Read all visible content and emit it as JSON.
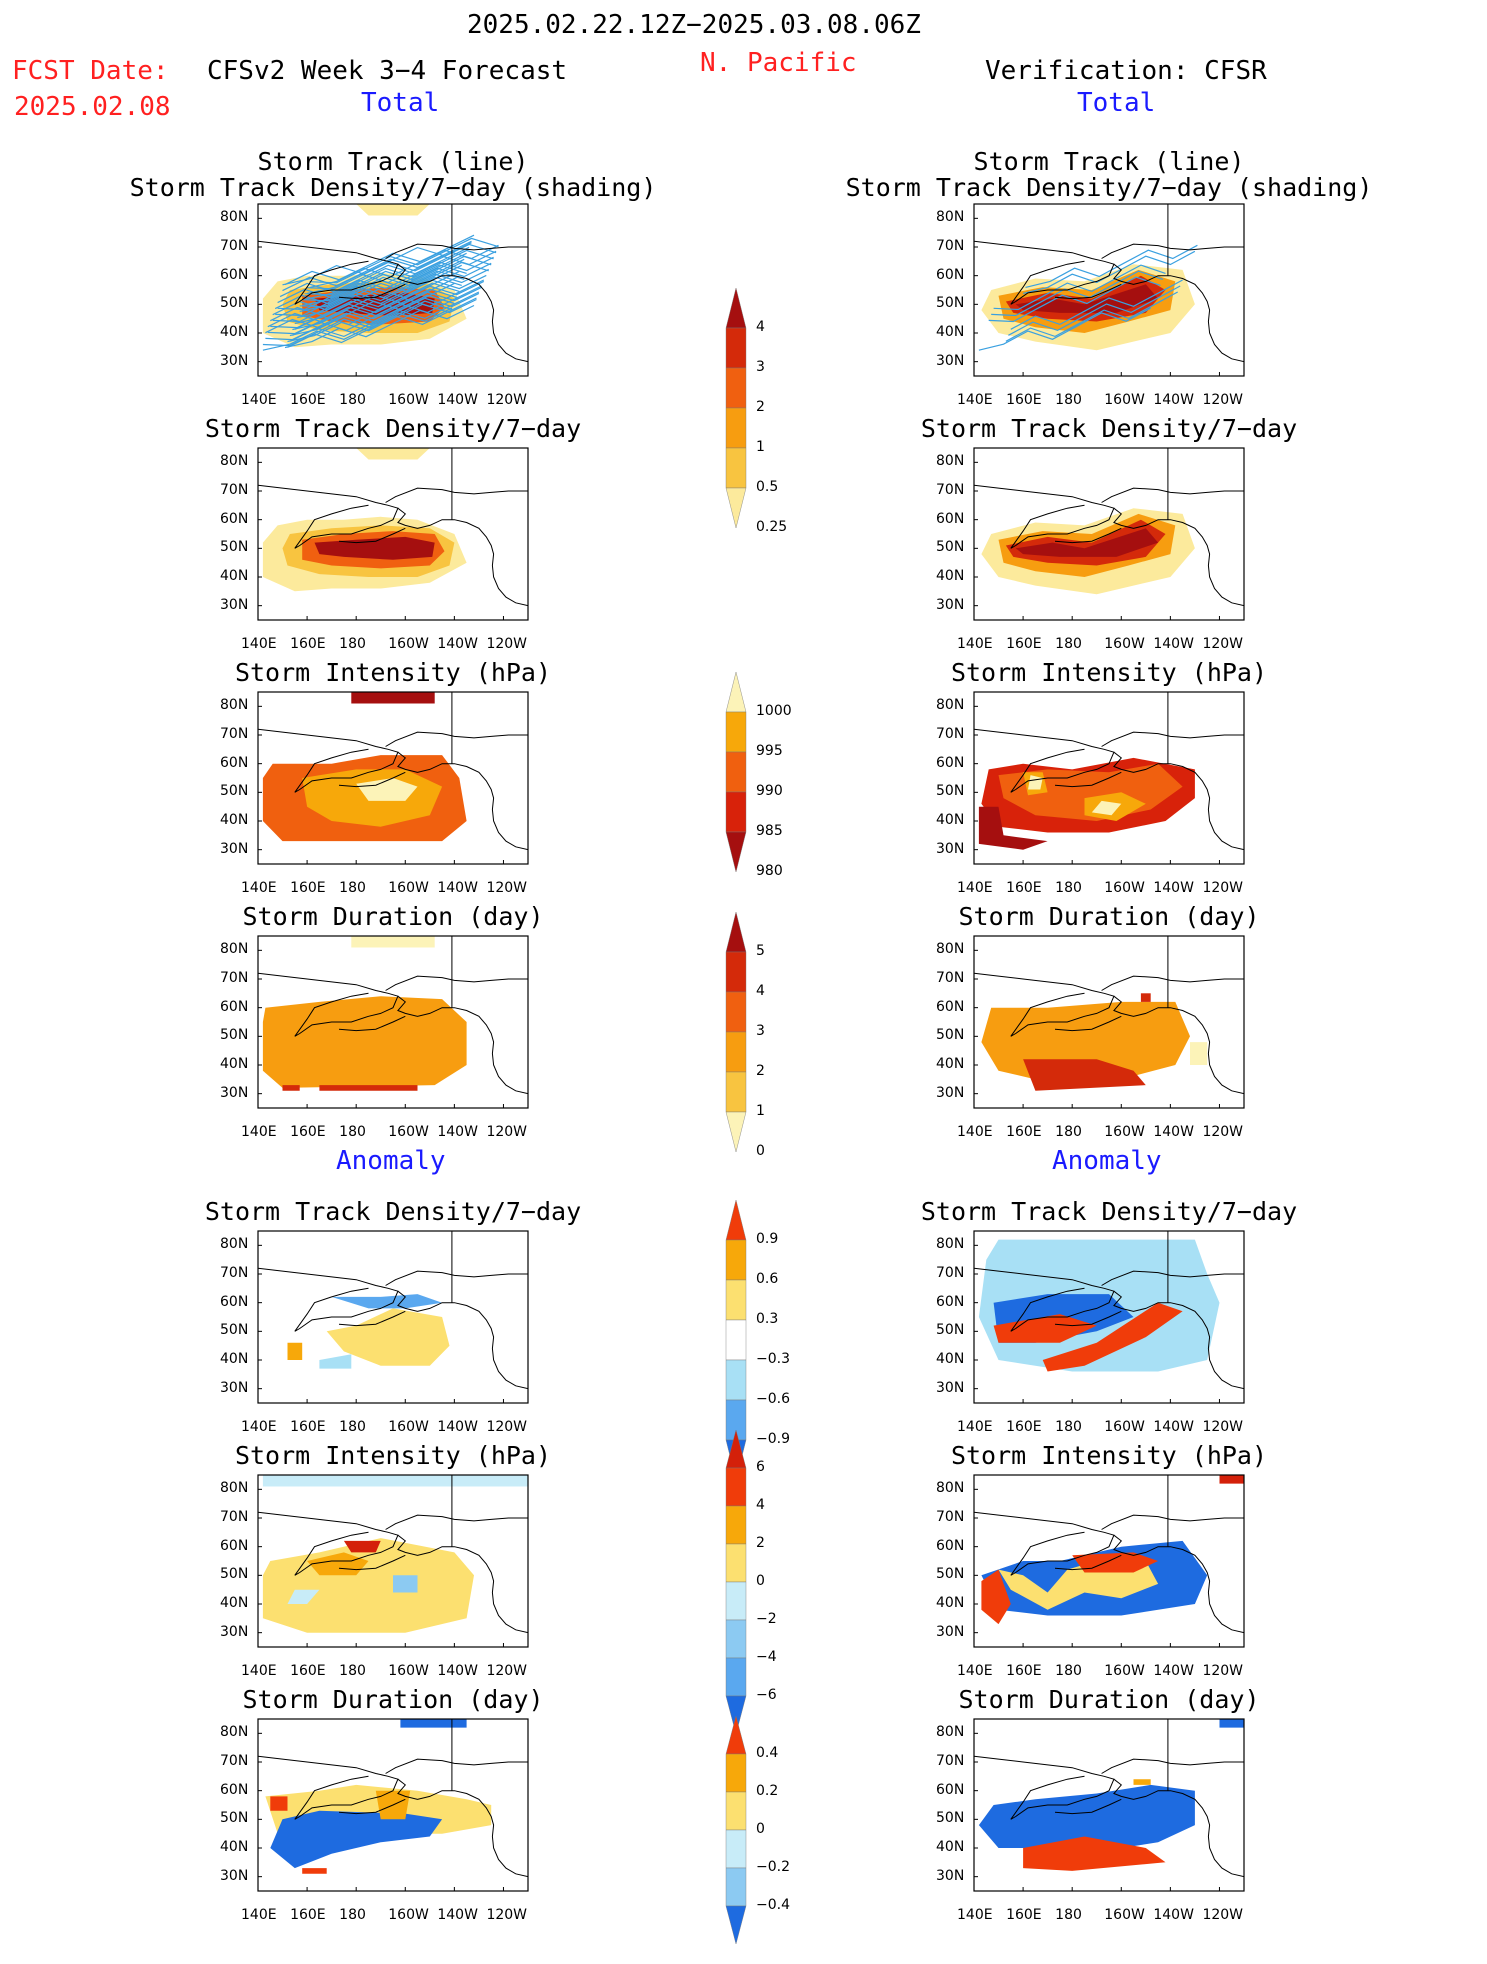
{
  "header": {
    "date_range": "2025.02.22.12Z−2025.03.08.06Z",
    "fcst_label": "FCST Date:",
    "fcst_date": "2025.02.08",
    "forecast_title": "CFSv2 Week 3−4 Forecast",
    "region": "N. Pacific",
    "verification": "Verification: CFSR"
  },
  "sections": {
    "total": "Total",
    "anomaly": "Anomaly"
  },
  "axes": {
    "lat_labels": [
      "80N",
      "70N",
      "60N",
      "50N",
      "40N",
      "30N"
    ],
    "lon_labels": [
      "140E",
      "160E",
      "180",
      "160W",
      "140W",
      "120W"
    ]
  },
  "panels": {
    "left": [
      {
        "title1": "Storm Track (line)",
        "title2": "Storm Track Density/7−day (shading)"
      },
      {
        "title1": "",
        "title2": "Storm Track Density/7−day"
      },
      {
        "title1": "",
        "title2": "Storm Intensity (hPa)"
      },
      {
        "title1": "",
        "title2": "Storm Duration (day)"
      },
      {
        "title1": "",
        "title2": "Storm Track Density/7−day"
      },
      {
        "title1": "",
        "title2": "Storm Intensity (hPa)"
      },
      {
        "title1": "",
        "title2": "Storm Duration (day)"
      }
    ],
    "right": [
      {
        "title1": "Storm Track (line)",
        "title2": "Storm Track Density/7−day (shading)"
      },
      {
        "title1": "",
        "title2": "Storm Track Density/7−day"
      },
      {
        "title1": "",
        "title2": "Storm Intensity (hPa)"
      },
      {
        "title1": "",
        "title2": "Storm Duration (day)"
      },
      {
        "title1": "",
        "title2": "Storm Track Density/7−day"
      },
      {
        "title1": "",
        "title2": "Storm Intensity (hPa)"
      },
      {
        "title1": "",
        "title2": "Storm Duration (day)"
      }
    ]
  },
  "colorbars": {
    "density": {
      "labels": [
        "4",
        "3",
        "2",
        "1",
        "0.5",
        "0.25"
      ],
      "colors": [
        "#a50f0f",
        "#d42a0a",
        "#f06010",
        "#f79d10",
        "#f8c440",
        "#fcea9c"
      ]
    },
    "intensity": {
      "labels": [
        "1000",
        "995",
        "990",
        "985",
        "980"
      ],
      "colors": [
        "#fcf3b8",
        "#f7a80a",
        "#f0600f",
        "#d8220a",
        "#a50f0f"
      ]
    },
    "duration": {
      "labels": [
        "5",
        "4",
        "3",
        "2",
        "1",
        "0"
      ],
      "colors": [
        "#a50f0f",
        "#d42a0a",
        "#f06010",
        "#f79d10",
        "#f8c440",
        "#fcf3b8"
      ]
    },
    "density_anom": {
      "labels": [
        "0.9",
        "0.6",
        "0.3",
        "−0.3",
        "−0.6",
        "−0.9"
      ],
      "colors": [
        "#f03c0a",
        "#f7a80a",
        "#fce070",
        "#ffffff",
        "#a8e0f5",
        "#5aa8ef",
        "#1e6be0"
      ]
    },
    "intensity_anom": {
      "labels": [
        "6",
        "4",
        "2",
        "0",
        "−2",
        "−4",
        "−6"
      ],
      "colors": [
        "#d4200a",
        "#f03c0a",
        "#f7a80a",
        "#fce070",
        "#c8ecf8",
        "#8ccaf2",
        "#5aa8ef",
        "#1e6be0"
      ]
    },
    "duration_anom": {
      "labels": [
        "0.4",
        "0.2",
        "0",
        "−0.2",
        "−0.4"
      ],
      "colors": [
        "#f03c0a",
        "#f7a80a",
        "#fce070",
        "#c8ecf8",
        "#8ccaf2",
        "#1e6be0"
      ]
    }
  },
  "colors": {
    "title_red": "#ff2020",
    "section_blue": "#1a1aff",
    "track_line": "#3aa0e0",
    "coast": "#000000"
  }
}
